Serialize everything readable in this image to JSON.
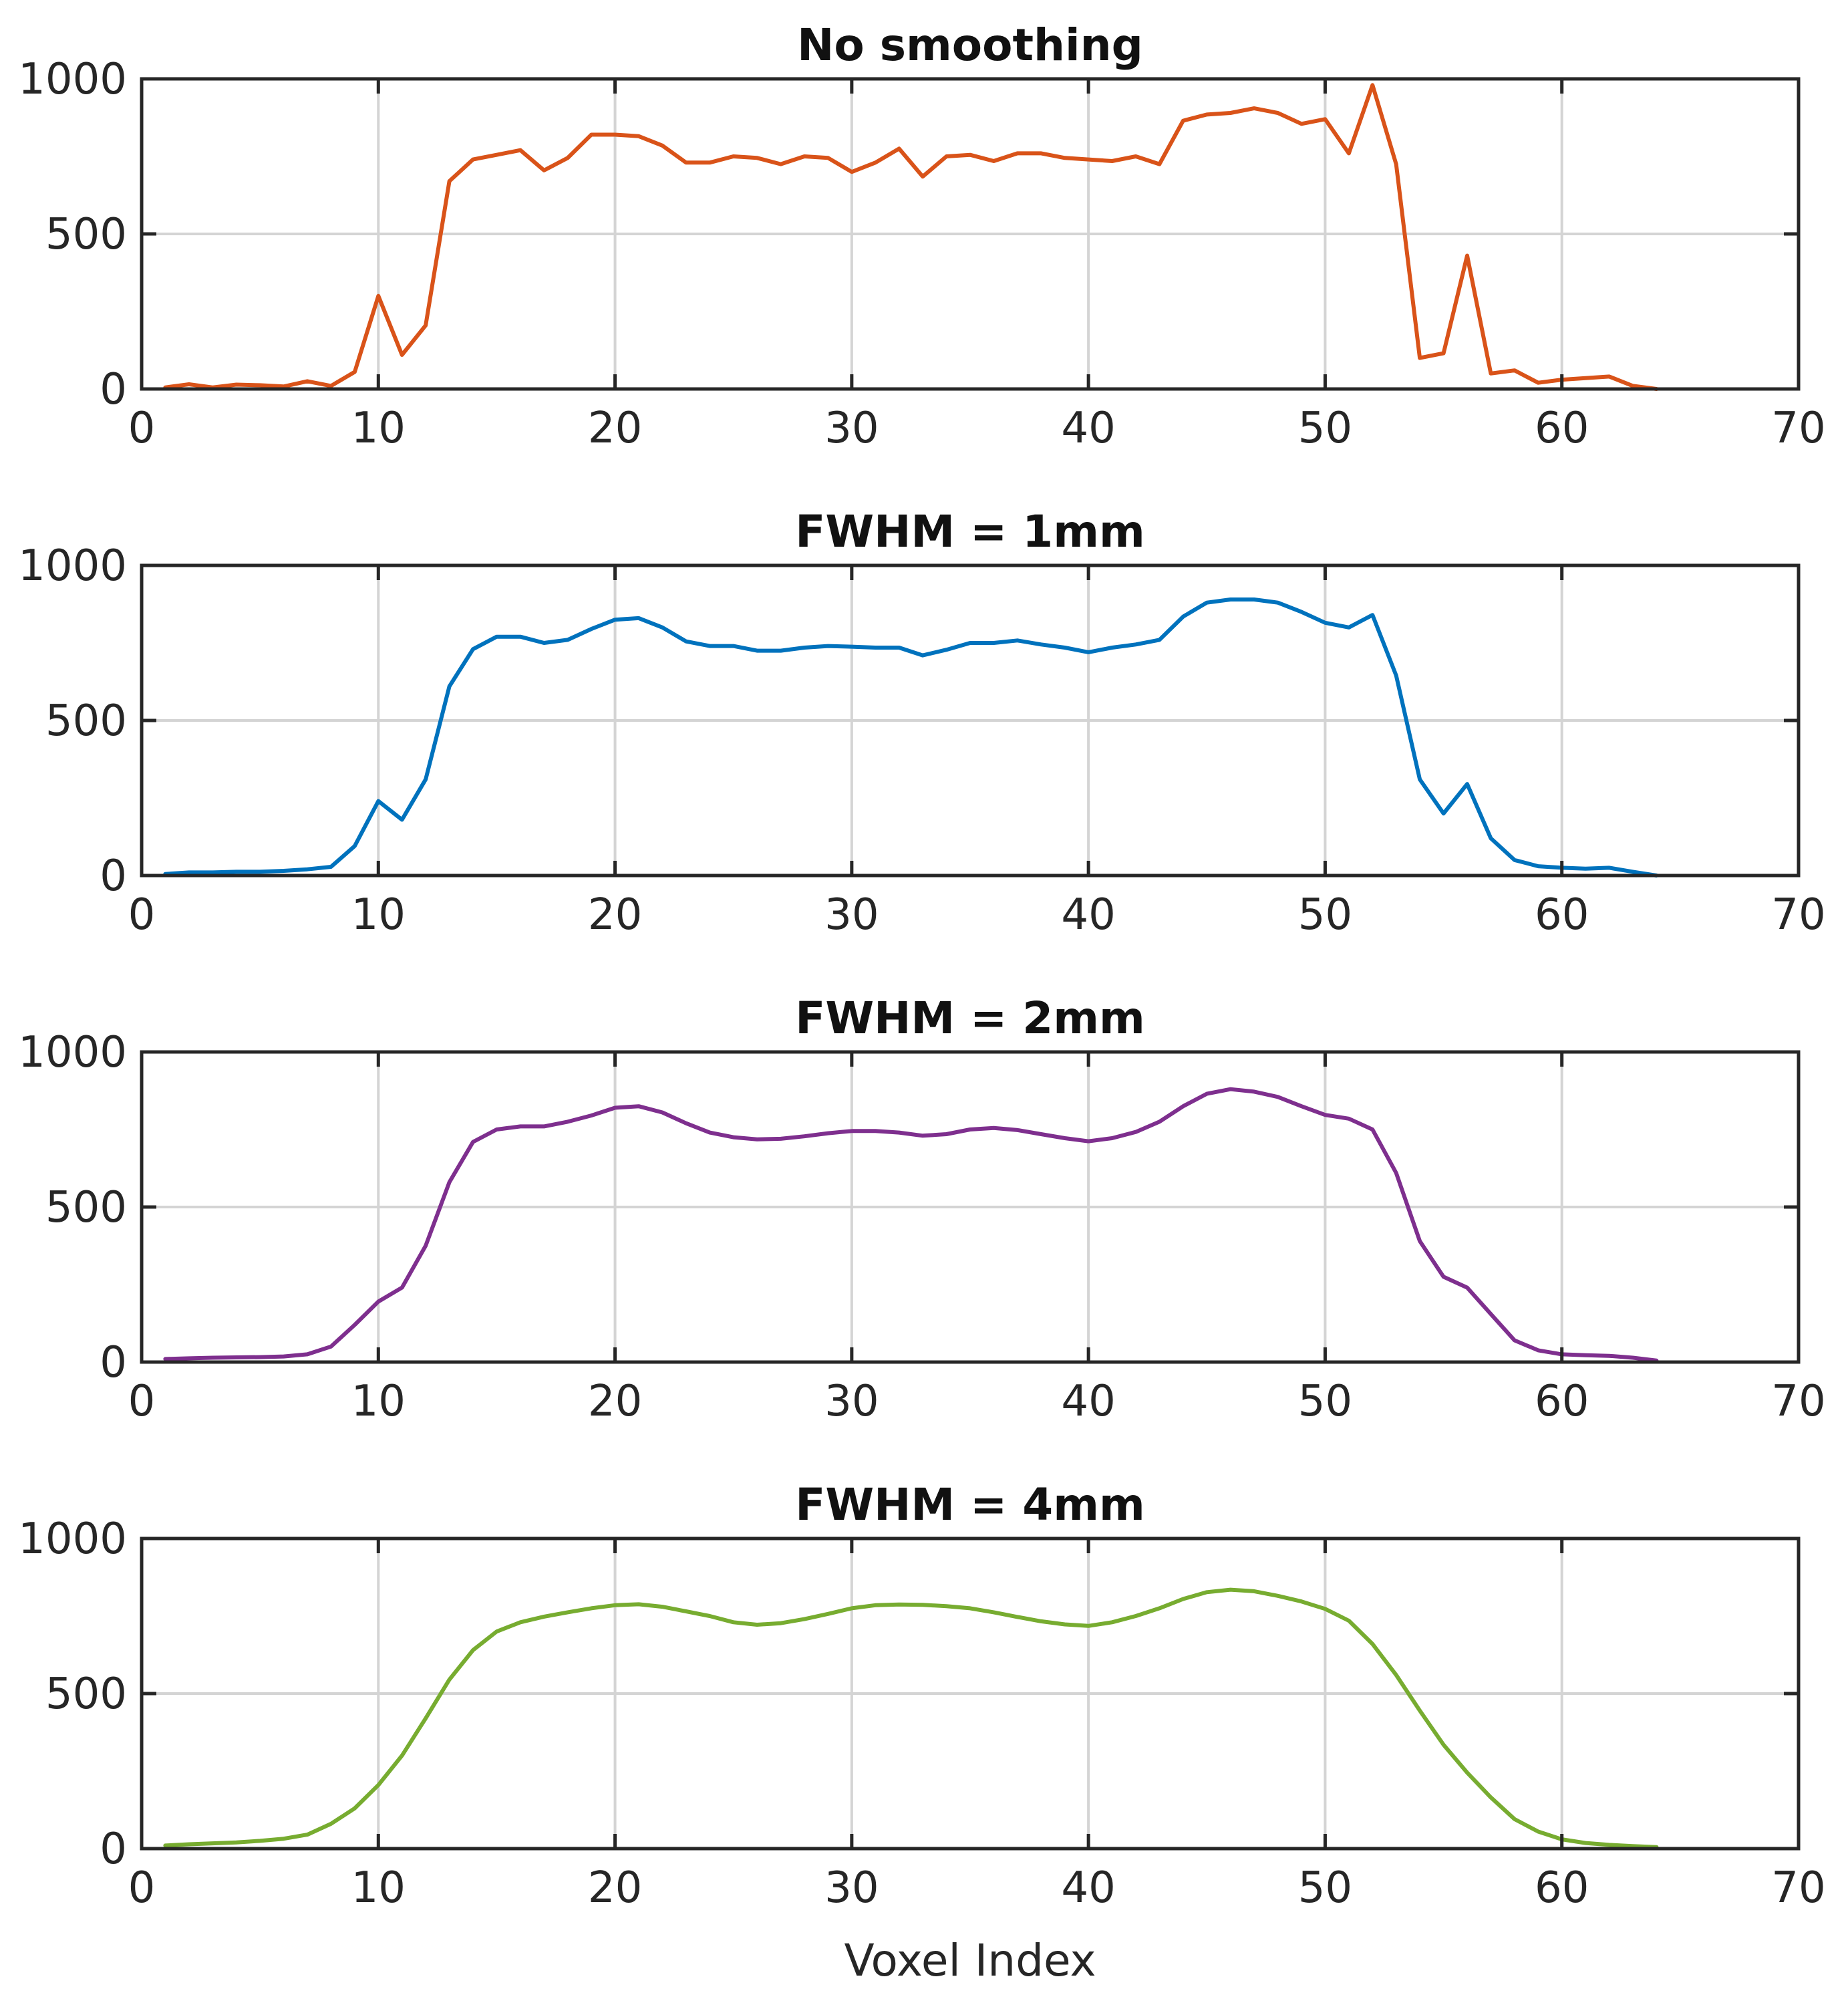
{
  "chart_data": [
    {
      "type": "line",
      "title": "No smoothing",
      "xlim": [
        0,
        70
      ],
      "ylim": [
        0,
        1000
      ],
      "xticks": [
        "0",
        "10",
        "20",
        "30",
        "40",
        "50",
        "60",
        "70"
      ],
      "yticks": [
        "0",
        "500",
        "1000"
      ],
      "grid": true,
      "color": "#D95319",
      "x": [
        1,
        2,
        3,
        4,
        5,
        6,
        7,
        8,
        9,
        10,
        11,
        12,
        13,
        14,
        15,
        16,
        17,
        18,
        19,
        20,
        21,
        22,
        23,
        24,
        25,
        26,
        27,
        28,
        29,
        30,
        31,
        32,
        33,
        34,
        35,
        36,
        37,
        38,
        39,
        40,
        41,
        42,
        43,
        44,
        45,
        46,
        47,
        48,
        49,
        50,
        51,
        52,
        53,
        54,
        55,
        56,
        57,
        58,
        59,
        60,
        61,
        62,
        63,
        64
      ],
      "y": [
        5,
        15,
        5,
        14,
        12,
        8,
        25,
        10,
        55,
        300,
        110,
        205,
        670,
        740,
        755,
        770,
        705,
        745,
        820,
        820,
        815,
        785,
        730,
        730,
        750,
        745,
        725,
        750,
        745,
        700,
        730,
        775,
        685,
        750,
        755,
        735,
        760,
        760,
        745,
        740,
        735,
        750,
        725,
        865,
        885,
        890,
        905,
        890,
        855,
        870,
        760,
        980,
        725,
        100,
        115,
        430,
        50,
        60,
        20,
        30,
        35,
        40,
        10,
        0
      ]
    },
    {
      "type": "line",
      "title": "FWHM = 1mm",
      "xlim": [
        0,
        70
      ],
      "ylim": [
        0,
        1000
      ],
      "xticks": [
        "0",
        "10",
        "20",
        "30",
        "40",
        "50",
        "60",
        "70"
      ],
      "yticks": [
        "0",
        "500",
        "1000"
      ],
      "grid": true,
      "color": "#0072BD",
      "x": [
        1,
        2,
        3,
        4,
        5,
        6,
        7,
        8,
        9,
        10,
        11,
        12,
        13,
        14,
        15,
        16,
        17,
        18,
        19,
        20,
        21,
        22,
        23,
        24,
        25,
        26,
        27,
        28,
        29,
        30,
        31,
        32,
        33,
        34,
        35,
        36,
        37,
        38,
        39,
        40,
        41,
        42,
        43,
        44,
        45,
        46,
        47,
        48,
        49,
        50,
        51,
        52,
        53,
        54,
        55,
        56,
        57,
        58,
        59,
        60,
        61,
        62,
        63,
        64
      ],
      "y": [
        5,
        10,
        10,
        12,
        12,
        15,
        20,
        28,
        95,
        240,
        180,
        310,
        610,
        730,
        770,
        770,
        750,
        760,
        795,
        825,
        830,
        800,
        755,
        740,
        740,
        725,
        725,
        735,
        740,
        738,
        735,
        735,
        710,
        728,
        750,
        750,
        758,
        745,
        735,
        720,
        735,
        745,
        760,
        835,
        880,
        890,
        890,
        880,
        850,
        815,
        800,
        840,
        645,
        310,
        200,
        295,
        120,
        50,
        30,
        25,
        22,
        25,
        12,
        0
      ]
    },
    {
      "type": "line",
      "title": "FWHM = 2mm",
      "xlim": [
        0,
        70
      ],
      "ylim": [
        0,
        1000
      ],
      "xticks": [
        "0",
        "10",
        "20",
        "30",
        "40",
        "50",
        "60",
        "70"
      ],
      "yticks": [
        "0",
        "500",
        "1000"
      ],
      "grid": true,
      "color": "#7E2F8E",
      "x": [
        1,
        2,
        3,
        4,
        5,
        6,
        7,
        8,
        9,
        10,
        11,
        12,
        13,
        14,
        15,
        16,
        17,
        18,
        19,
        20,
        21,
        22,
        23,
        24,
        25,
        26,
        27,
        28,
        29,
        30,
        31,
        32,
        33,
        34,
        35,
        36,
        37,
        38,
        39,
        40,
        41,
        42,
        43,
        44,
        45,
        46,
        47,
        48,
        49,
        50,
        51,
        52,
        53,
        54,
        55,
        56,
        57,
        58,
        59,
        60,
        61,
        62,
        63,
        64
      ],
      "y": [
        10,
        12,
        14,
        15,
        16,
        18,
        25,
        50,
        120,
        195,
        240,
        375,
        580,
        710,
        750,
        760,
        760,
        775,
        795,
        820,
        825,
        805,
        770,
        740,
        725,
        718,
        720,
        728,
        738,
        745,
        745,
        740,
        730,
        735,
        750,
        755,
        748,
        735,
        722,
        712,
        722,
        742,
        775,
        825,
        865,
        880,
        872,
        855,
        825,
        797,
        785,
        750,
        610,
        390,
        275,
        240,
        155,
        70,
        38,
        25,
        22,
        20,
        14,
        5
      ]
    },
    {
      "type": "line",
      "title": "FWHM = 4mm",
      "xlabel": "Voxel Index",
      "xlim": [
        0,
        70
      ],
      "ylim": [
        0,
        1000
      ],
      "xticks": [
        "0",
        "10",
        "20",
        "30",
        "40",
        "50",
        "60",
        "70"
      ],
      "yticks": [
        "0",
        "500",
        "1000"
      ],
      "grid": true,
      "color": "#77AC30",
      "x": [
        1,
        2,
        3,
        4,
        5,
        6,
        7,
        8,
        9,
        10,
        11,
        12,
        13,
        14,
        15,
        16,
        17,
        18,
        19,
        20,
        21,
        22,
        23,
        24,
        25,
        26,
        27,
        28,
        29,
        30,
        31,
        32,
        33,
        34,
        35,
        36,
        37,
        38,
        39,
        40,
        41,
        42,
        43,
        44,
        45,
        46,
        47,
        48,
        49,
        50,
        51,
        52,
        53,
        54,
        55,
        56,
        57,
        58,
        59,
        60,
        61,
        62,
        63,
        64
      ],
      "y": [
        10,
        14,
        17,
        20,
        25,
        32,
        45,
        80,
        130,
        205,
        300,
        420,
        545,
        640,
        700,
        730,
        748,
        762,
        775,
        785,
        788,
        780,
        765,
        750,
        730,
        722,
        727,
        740,
        757,
        775,
        785,
        787,
        786,
        782,
        775,
        762,
        747,
        733,
        723,
        718,
        730,
        750,
        775,
        805,
        827,
        835,
        830,
        815,
        797,
        773,
        735,
        660,
        560,
        445,
        335,
        245,
        165,
        95,
        55,
        30,
        18,
        12,
        8,
        5
      ]
    }
  ]
}
